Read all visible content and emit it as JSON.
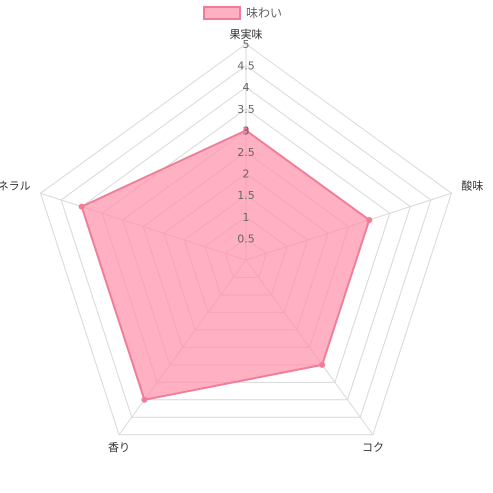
{
  "chart_data": {
    "type": "radar",
    "axes": [
      "果実味",
      "酸味",
      "コク",
      "香り",
      "ミネラル"
    ],
    "series": [
      {
        "name": "味わい",
        "values": [
          3,
          3,
          3,
          4,
          4
        ],
        "fill": "#ff8fa8",
        "fill_opacity": 0.7,
        "stroke": "#f07d97"
      }
    ],
    "scale": {
      "min": 0,
      "max": 5,
      "step": 0.5
    },
    "tick_labels": [
      "0.5",
      "1",
      "1.5",
      "2",
      "2.5",
      "3",
      "3.5",
      "4",
      "4.5",
      "5"
    ],
    "legend": {
      "position": "top",
      "label": "味わい"
    },
    "grid": true
  }
}
